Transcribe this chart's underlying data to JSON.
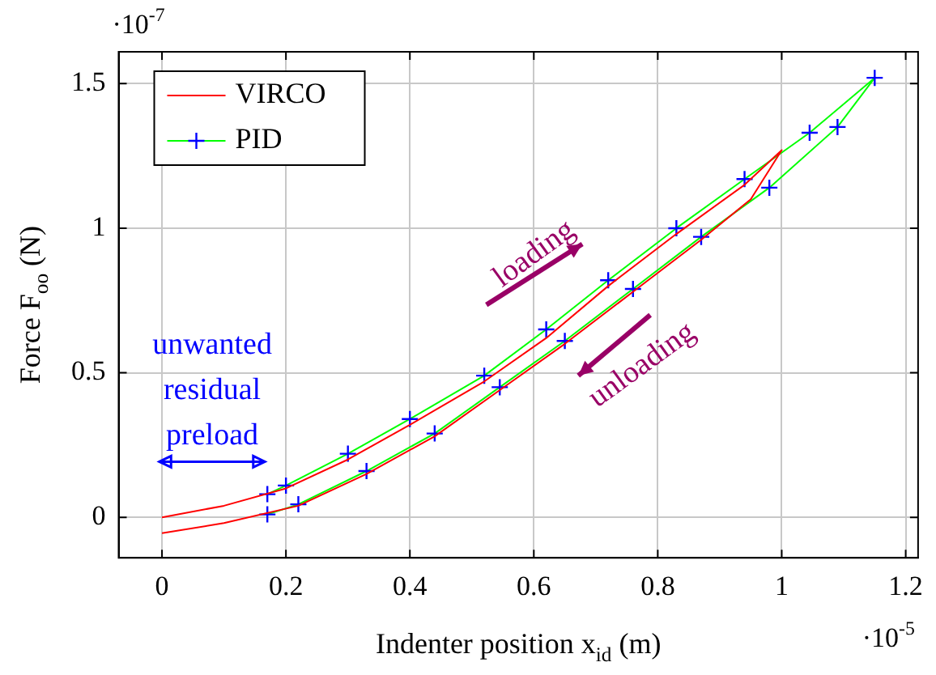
{
  "chart_data": {
    "type": "line",
    "xlabel": "Indenter position x$_{id}$ (m)",
    "ylabel": "Force F$_{oo}$ (N)",
    "xlim": [
      -0.07,
      1.22
    ],
    "xticks": [
      0,
      0.2,
      0.4,
      0.6,
      0.8,
      1,
      1.2
    ],
    "ylim": [
      -0.14,
      1.61
    ],
    "yticks": [
      0,
      0.5,
      1,
      1.5
    ],
    "grid": true,
    "legend": "top left",
    "series": [
      {
        "name": "VIRCO",
        "color": "#ff0000",
        "marker": "none",
        "x": [
          0,
          0.1,
          0.2,
          0.3,
          0.4,
          0.52,
          0.62,
          0.72,
          0.83,
          0.94,
          1.0,
          0.95,
          0.87,
          0.76,
          0.65,
          0.545,
          0.44,
          0.33,
          0.22,
          0.1,
          0
        ],
        "values": [
          0,
          0.04,
          0.1,
          0.2,
          0.32,
          0.47,
          0.62,
          0.8,
          0.98,
          1.15,
          1.27,
          1.1,
          0.96,
          0.78,
          0.6,
          0.44,
          0.28,
          0.15,
          0.04,
          -0.02,
          -0.055
        ]
      },
      {
        "name": "PID",
        "color": "#00ff00",
        "marker": "cross",
        "x": [
          0.17,
          0.2,
          0.3,
          0.4,
          0.52,
          0.62,
          0.72,
          0.83,
          0.94,
          1.045,
          1.15,
          1.09,
          0.98,
          0.87,
          0.76,
          0.65,
          0.545,
          0.44,
          0.33,
          0.22,
          0.17
        ],
        "values": [
          0.08,
          0.11,
          0.22,
          0.34,
          0.49,
          0.65,
          0.82,
          1.0,
          1.17,
          1.33,
          1.52,
          1.35,
          1.14,
          0.97,
          0.79,
          0.61,
          0.45,
          0.29,
          0.16,
          0.045,
          0.01
        ]
      }
    ],
    "annotations": [
      "·10$^{-7}$",
      "·10$^{-5}$",
      "loading",
      "unloading",
      "unwanted residual preload"
    ]
  }
}
